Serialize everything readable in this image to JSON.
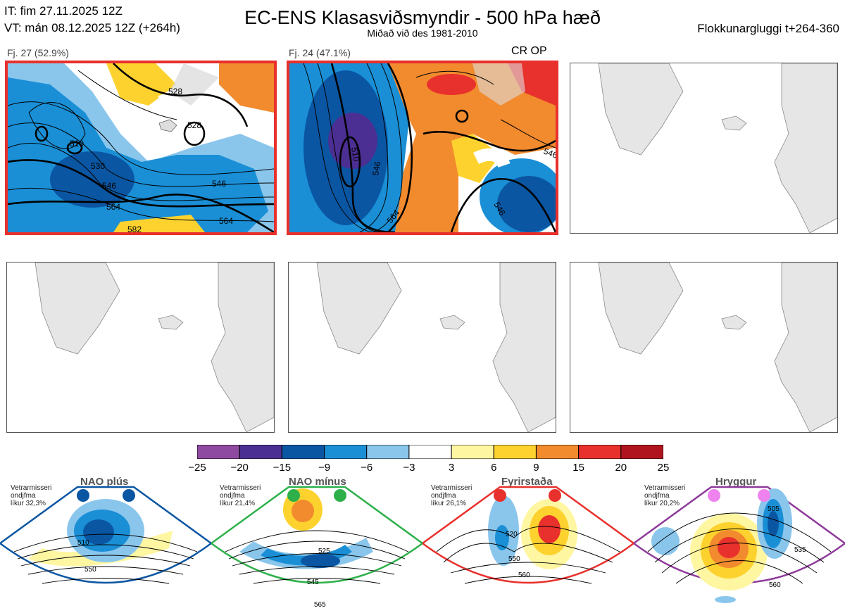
{
  "header": {
    "it_line": "IT: fim 27.11.2025 12Z",
    "vt_line": "VT: mán 08.12.2025 12Z  (+264h)",
    "title": "EC-ENS Klasasviðsmyndir - 500 hPa hæð",
    "subtitle": "Miðað við des 1981-2010",
    "window": "Flokkunargluggi t+264-360"
  },
  "panels": [
    {
      "label": "Fj. 27 (52.9%)",
      "active": true,
      "contours": [
        "528",
        "528",
        "510",
        "530",
        "546",
        "546",
        "564",
        "564",
        "582"
      ]
    },
    {
      "label": "Fj. 24 (47.1%)",
      "active": true,
      "tag": "CR OP",
      "contours": [
        "510",
        "546",
        "546",
        "564",
        "546"
      ]
    },
    {
      "label": "",
      "active": false
    },
    {
      "label": "",
      "active": false
    },
    {
      "label": "",
      "active": false
    },
    {
      "label": "",
      "active": false
    }
  ],
  "colorbar": {
    "ticks": [
      "−25",
      "−20",
      "−15",
      "−9",
      "−6",
      "−3",
      "3",
      "6",
      "9",
      "15",
      "20",
      "25"
    ],
    "colors": [
      "#8e4aa0",
      "#4b2f92",
      "#0b56a3",
      "#1a8fd6",
      "#8ac6ec",
      "#ffffff",
      "#fff6a2",
      "#fdd22e",
      "#f28a2e",
      "#e8302c",
      "#b0141e"
    ]
  },
  "regimes": [
    {
      "name": "NAO plús",
      "note": [
        "Vetrarmisseri",
        "ondjfma",
        "líkur 32,3%"
      ],
      "color": "#0b56a3",
      "dot": "#0b56a3",
      "contours": [
        "510",
        "550"
      ]
    },
    {
      "name": "NAO mínus",
      "note": [
        "Vetrarmisseri",
        "ondjfma",
        "líkur 21,4%"
      ],
      "color": "#2db04a",
      "dot": "#2db04a",
      "contours": [
        "525",
        "545",
        "565"
      ]
    },
    {
      "name": "Fyrirstaða",
      "note": [
        "Vetrarmisseri",
        "ondjfma",
        "líkur 26,1%"
      ],
      "color": "#e8302c",
      "dot": "#e8302c",
      "contours": [
        "520",
        "550",
        "560"
      ]
    },
    {
      "name": "Hryggur",
      "note": [
        "Vetrarmisseri",
        "ondjfma",
        "líkur 20,2%"
      ],
      "color": "#8e3a9a",
      "dot": "#ee82ee",
      "contours": [
        "505",
        "535",
        "560"
      ]
    }
  ]
}
